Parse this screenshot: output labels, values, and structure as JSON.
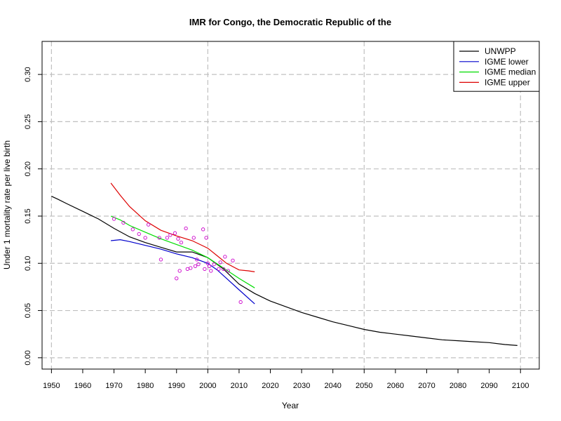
{
  "chart_data": {
    "type": "line",
    "title": "IMR for Congo, the Democratic Republic of the",
    "xlabel": "Year",
    "ylabel": "Under 1 mortality rate per live birth",
    "xlim": [
      1947,
      2106
    ],
    "ylim": [
      -0.012,
      0.335
    ],
    "xticks": [
      1950,
      1960,
      1970,
      1980,
      1990,
      2000,
      2010,
      2020,
      2030,
      2040,
      2050,
      2060,
      2070,
      2080,
      2090,
      2100
    ],
    "yticks": [
      0.0,
      0.05,
      0.1,
      0.15,
      0.2,
      0.25,
      0.3
    ],
    "ytick_labels": [
      "0.00",
      "0.05",
      "0.10",
      "0.15",
      "0.20",
      "0.25",
      "0.30"
    ],
    "grid": true,
    "legend_position": "top-right",
    "series": [
      {
        "name": "UNWPP",
        "color": "#000000",
        "kind": "line",
        "x": [
          1950,
          1952,
          1955,
          1960,
          1965,
          1970,
          1975,
          1980,
          1985,
          1990,
          1995,
          2000,
          2005,
          2010,
          2015,
          2020,
          2025,
          2030,
          2035,
          2040,
          2045,
          2050,
          2055,
          2060,
          2065,
          2070,
          2075,
          2080,
          2085,
          2090,
          2095,
          2099
        ],
        "y": [
          0.171,
          0.168,
          0.163,
          0.155,
          0.147,
          0.137,
          0.128,
          0.122,
          0.117,
          0.112,
          0.112,
          0.106,
          0.094,
          0.078,
          0.068,
          0.06,
          0.054,
          0.048,
          0.043,
          0.038,
          0.034,
          0.03,
          0.027,
          0.025,
          0.023,
          0.021,
          0.019,
          0.018,
          0.017,
          0.016,
          0.014,
          0.013
        ]
      },
      {
        "name": "IGME lower",
        "color": "#0000cc",
        "kind": "line",
        "x": [
          1969,
          1972,
          1975,
          1980,
          1985,
          1990,
          1995,
          2000,
          2003,
          2006,
          2010,
          2015
        ],
        "y": [
          0.124,
          0.125,
          0.123,
          0.119,
          0.115,
          0.11,
          0.106,
          0.1,
          0.093,
          0.084,
          0.072,
          0.057
        ]
      },
      {
        "name": "IGME median",
        "color": "#00dd00",
        "kind": "line",
        "x": [
          1969,
          1972,
          1975,
          1980,
          1985,
          1990,
          1995,
          2000,
          2005,
          2010,
          2015
        ],
        "y": [
          0.15,
          0.146,
          0.14,
          0.133,
          0.126,
          0.12,
          0.114,
          0.106,
          0.095,
          0.084,
          0.074
        ]
      },
      {
        "name": "IGME upper",
        "color": "#dd0000",
        "kind": "line",
        "x": [
          1969,
          1972,
          1975,
          1980,
          1985,
          1990,
          1995,
          2000,
          2003,
          2006,
          2010,
          2013,
          2015
        ],
        "y": [
          0.185,
          0.172,
          0.16,
          0.145,
          0.135,
          0.129,
          0.124,
          0.116,
          0.108,
          0.1,
          0.093,
          0.092,
          0.091
        ]
      },
      {
        "name": "",
        "color": "#cc00cc",
        "kind": "points",
        "x": [
          1970,
          1973,
          1976,
          1978,
          1980,
          1981,
          1984.5,
          1985,
          1987,
          1988,
          1989.5,
          1990,
          1990.5,
          1991,
          1991.5,
          1993,
          1993.5,
          1994.5,
          1995.5,
          1996,
          1996.5,
          1997,
          1998.5,
          1999,
          1999.5,
          2000,
          2000.5,
          2001,
          2002,
          2003.5,
          2004,
          2005,
          2005.5,
          2006.5,
          2008,
          2010.5
        ],
        "y": [
          0.147,
          0.143,
          0.136,
          0.131,
          0.127,
          0.141,
          0.127,
          0.104,
          0.127,
          0.13,
          0.132,
          0.084,
          0.126,
          0.092,
          0.122,
          0.137,
          0.094,
          0.095,
          0.127,
          0.097,
          0.104,
          0.099,
          0.136,
          0.094,
          0.127,
          0.1,
          0.097,
          0.092,
          0.099,
          0.094,
          0.101,
          0.094,
          0.107,
          0.092,
          0.103,
          0.059
        ]
      }
    ]
  }
}
